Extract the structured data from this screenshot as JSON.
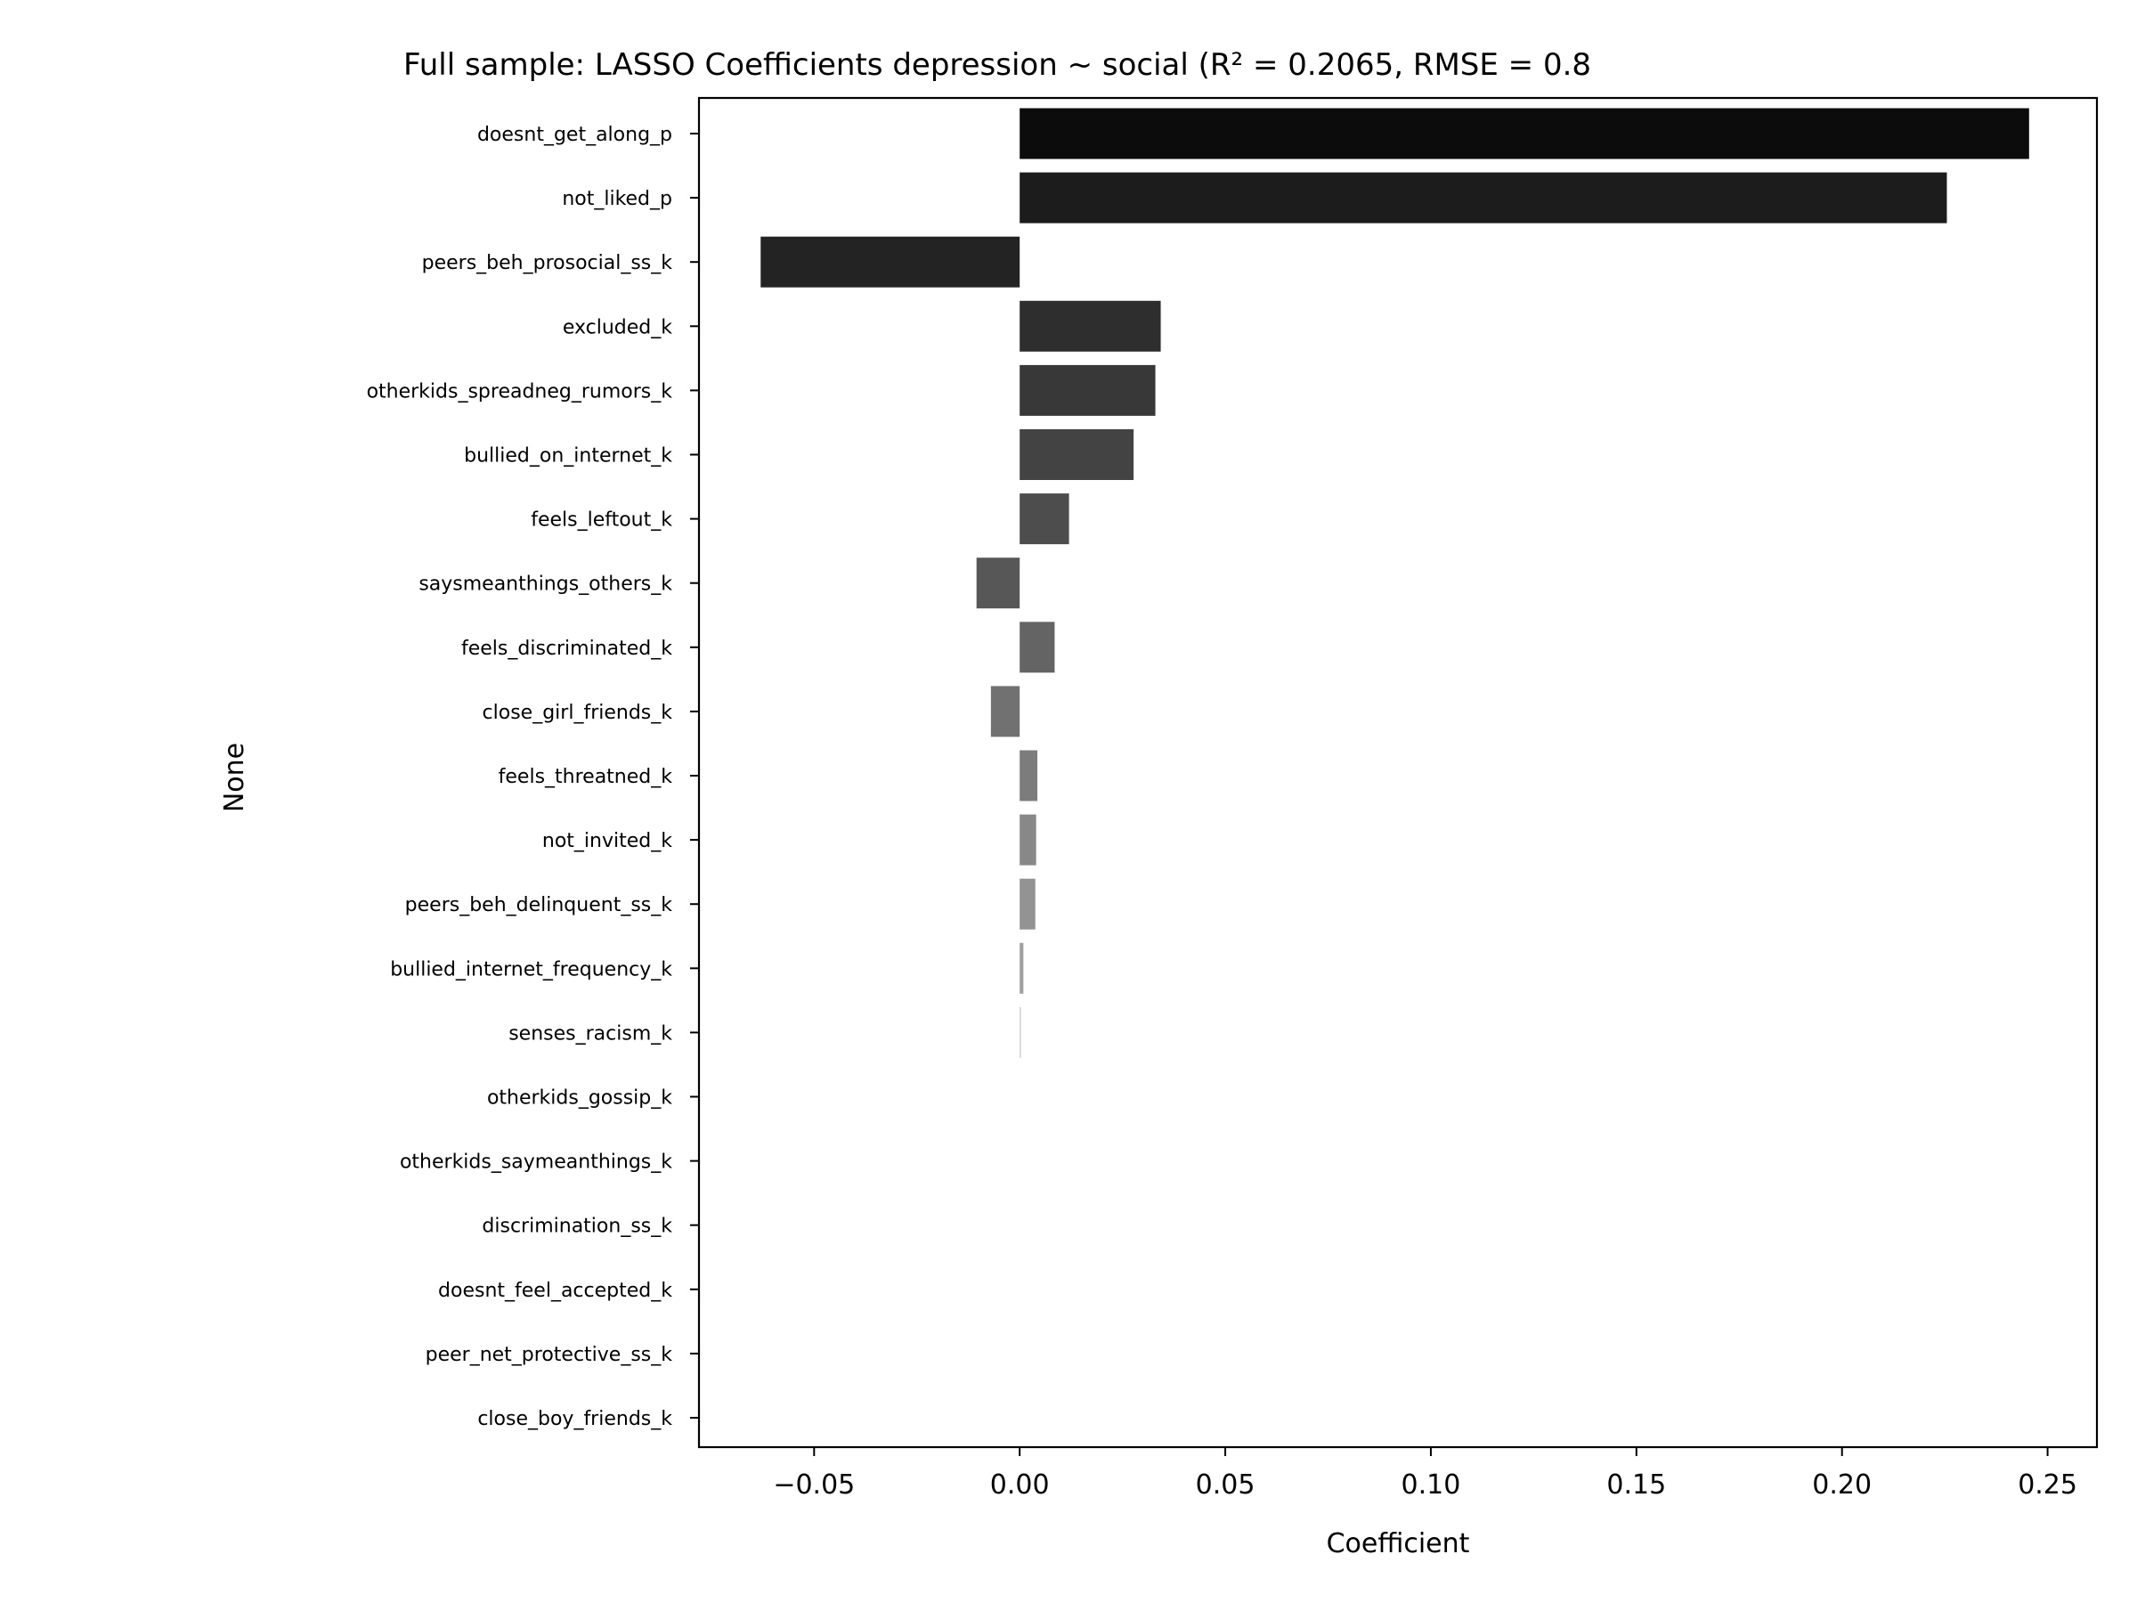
{
  "chart_data": {
    "type": "bar",
    "orientation": "horizontal",
    "title": "Full sample: LASSO Coefficients depression ~ social (R² = 0.2065, RMSE = 0.8",
    "xlabel": "Coefficient",
    "ylabel": "None",
    "xlim": [
      -0.078,
      0.262
    ],
    "xticks": [
      -0.05,
      0.0,
      0.05,
      0.1,
      0.15,
      0.2,
      0.25
    ],
    "xtick_labels": [
      "−0.05",
      "0.00",
      "0.05",
      "0.10",
      "0.15",
      "0.20",
      "0.25"
    ],
    "grid": false,
    "legend": "none",
    "categories": [
      "doesnt_get_along_p",
      "not_liked_p",
      "peers_beh_prosocial_ss_k",
      "excluded_k",
      "otherkids_spreadneg_rumors_k",
      "bullied_on_internet_k",
      "feels_leftout_k",
      "saysmeanthings_others_k",
      "feels_discriminated_k",
      "close_girl_friends_k",
      "feels_threatned_k",
      "not_invited_k",
      "peers_beh_delinquent_ss_k",
      "bullied_internet_frequency_k",
      "senses_racism_k",
      "otherkids_gossip_k",
      "otherkids_saymeanthings_k",
      "discrimination_ss_k",
      "doesnt_feel_accepted_k",
      "peer_net_protective_ss_k",
      "close_boy_friends_k"
    ],
    "values": [
      0.2455,
      0.2255,
      -0.063,
      0.0343,
      0.033,
      0.0277,
      0.012,
      -0.0105,
      0.0085,
      -0.007,
      0.0043,
      0.004,
      0.0038,
      0.0009,
      0.0003,
      0,
      0,
      0,
      0,
      0,
      0
    ],
    "colors": [
      "#0c0c0c",
      "#1c1c1c",
      "#232323",
      "#2e2e2e",
      "#383838",
      "#434343",
      "#4d4d4d",
      "#575757",
      "#646464",
      "#717171",
      "#7c7c7c",
      "#888888",
      "#939393",
      "#a0a0a0",
      "#cccccc",
      "#ffffff",
      "#ffffff",
      "#ffffff",
      "#ffffff",
      "#ffffff",
      "#ffffff"
    ]
  }
}
